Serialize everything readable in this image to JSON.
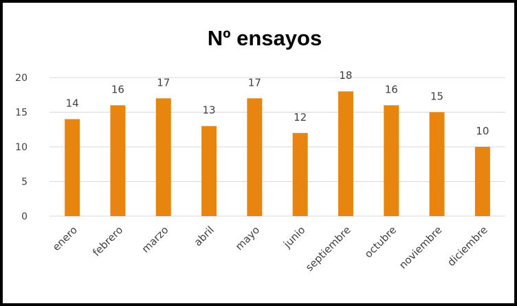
{
  "chart_data": {
    "type": "bar",
    "title": "Nº ensayos",
    "categories": [
      "enero",
      "febrero",
      "marzo",
      "abril",
      "mayo",
      "junio",
      "septiembre",
      "octubre",
      "noviembre",
      "diciembre"
    ],
    "values": [
      14,
      16,
      17,
      13,
      17,
      12,
      18,
      16,
      15,
      10
    ],
    "ylim": [
      0,
      20
    ],
    "yticks": [
      0,
      5,
      10,
      15,
      20
    ],
    "grid": true,
    "data_labels": true,
    "bar_color": "#E8850E",
    "grid_color": "#D9D9D9"
  }
}
